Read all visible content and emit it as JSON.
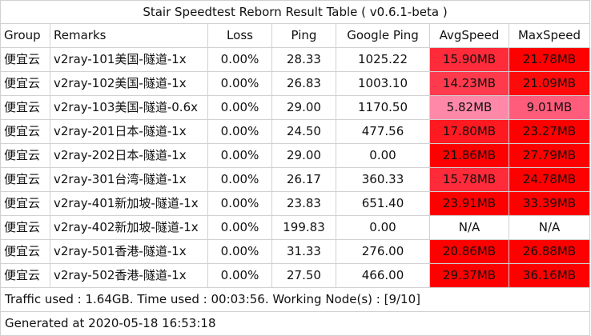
{
  "title": "Stair Speedtest Reborn Result Table ( v0.6.1-beta )",
  "table": {
    "header": [
      "Group",
      "Remarks",
      "Loss",
      "Ping",
      "Google Ping",
      "AvgSpeed",
      "MaxSpeed"
    ],
    "rows": [
      [
        "便宜云",
        "v2ray-101美国-隧道-1x",
        "0.00%",
        "28.33",
        "1025.22",
        "15.90MB",
        "21.78MB"
      ],
      [
        "便宜云",
        "v2ray-102美国-隧道-1x",
        "0.00%",
        "26.83",
        "1003.10",
        "14.23MB",
        "21.09MB"
      ],
      [
        "便宜云",
        "v2ray-103美国-隧道-0.6x",
        "0.00%",
        "29.00",
        "1170.50",
        "5.82MB",
        "9.01MB"
      ],
      [
        "便宜云",
        "v2ray-201日本-隧道-1x",
        "0.00%",
        "24.50",
        "477.56",
        "17.80MB",
        "23.27MB"
      ],
      [
        "便宜云",
        "v2ray-202日本-隧道-1x",
        "0.00%",
        "29.00",
        "0.00",
        "21.86MB",
        "27.79MB"
      ],
      [
        "便宜云",
        "v2ray-301台湾-隧道-1x",
        "0.00%",
        "26.17",
        "360.33",
        "15.78MB",
        "24.78MB"
      ],
      [
        "便宜云",
        "v2ray-401新加坡-隧道-1x",
        "0.00%",
        "23.83",
        "651.40",
        "23.91MB",
        "33.39MB"
      ],
      [
        "便宜云",
        "v2ray-402新加坡-隧道-1x",
        "0.00%",
        "199.83",
        "0.00",
        "N/A",
        "N/A"
      ],
      [
        "便宜云",
        "v2ray-501香港-隧道-1x",
        "0.00%",
        "31.33",
        "276.00",
        "20.86MB",
        "26.88MB"
      ],
      [
        "便宜云",
        "v2ray-502香港-隧道-1x",
        "0.00%",
        "27.50",
        "466.00",
        "29.37MB",
        "36.16MB"
      ]
    ],
    "speed_colors": [
      [
        "#ff2a3a",
        "#ff0000"
      ],
      [
        "#ff3a4d",
        "#ff0a0a"
      ],
      [
        "#ff88a8",
        "#ff5c7c"
      ],
      [
        "#ff1a22",
        "#ff0000"
      ],
      [
        "#ff0000",
        "#ff0000"
      ],
      [
        "#ff2a3a",
        "#ff0000"
      ],
      [
        "#ff0000",
        "#ff0000"
      ],
      [
        "#ffffff",
        "#ffffff"
      ],
      [
        "#ff0000",
        "#ff0000"
      ],
      [
        "#ff0000",
        "#ff0000"
      ]
    ]
  },
  "footer": {
    "traffic": "Traffic used : 1.64GB. Time used : 00:03:56. Working Node(s) : [9/10]",
    "generated": "Generated at 2020-05-18 16:53:18"
  }
}
